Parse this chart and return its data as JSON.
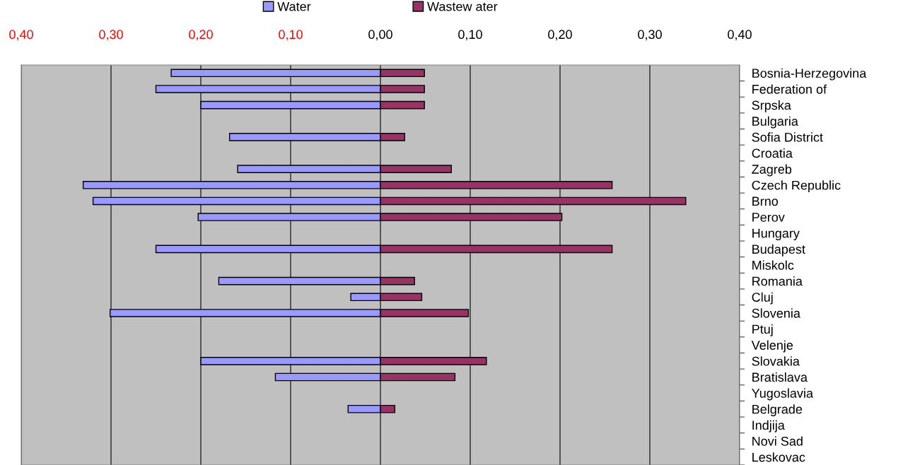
{
  "chart_data": {
    "type": "bar",
    "orientation": "horizontal",
    "stacked": true,
    "categories": [
      "Bosnia-Herzegovina",
      "Federation of",
      "Srpska",
      "Bulgaria",
      "Sofia District",
      "Croatia",
      "Zagreb",
      "Czech Republic",
      "Brno",
      "Perov",
      "Hungary",
      "Budapest",
      "Miskolc",
      "Romania",
      "Cluj",
      "Slovenia",
      "Ptuj",
      "Velenje",
      "Slovakia",
      "Bratislava",
      "Yugoslavia",
      "Belgrade",
      "Indjija",
      "Novi Sad",
      "Leskovac"
    ],
    "series": [
      {
        "name": "Water",
        "color": "#9999ff",
        "values": [
          -0.233,
          -0.25,
          -0.2,
          null,
          -0.168,
          null,
          -0.159,
          -0.331,
          -0.32,
          -0.203,
          null,
          -0.25,
          null,
          -0.18,
          -0.033,
          -0.301,
          null,
          null,
          -0.2,
          -0.117,
          null,
          -0.036,
          null,
          null,
          null
        ]
      },
      {
        "name": "Wastew ater",
        "color": "#993366",
        "values": [
          0.049,
          0.049,
          0.049,
          null,
          0.027,
          null,
          0.079,
          0.258,
          0.34,
          0.202,
          null,
          0.258,
          null,
          0.038,
          0.046,
          0.098,
          null,
          null,
          0.118,
          0.083,
          null,
          0.016,
          null,
          null,
          null
        ]
      }
    ],
    "xlim": [
      -0.4,
      0.4
    ],
    "xticks": [
      {
        "value": -0.4,
        "label": "0,40"
      },
      {
        "value": -0.3,
        "label": "0,30"
      },
      {
        "value": -0.2,
        "label": "0,20"
      },
      {
        "value": -0.1,
        "label": "0,10"
      },
      {
        "value": 0,
        "label": "0,00"
      },
      {
        "value": 0.1,
        "label": "0,10"
      },
      {
        "value": 0.2,
        "label": "0,20"
      },
      {
        "value": 0.3,
        "label": "0,30"
      },
      {
        "value": 0.4,
        "label": "0,40"
      }
    ],
    "grid": "x",
    "legend": "top"
  }
}
